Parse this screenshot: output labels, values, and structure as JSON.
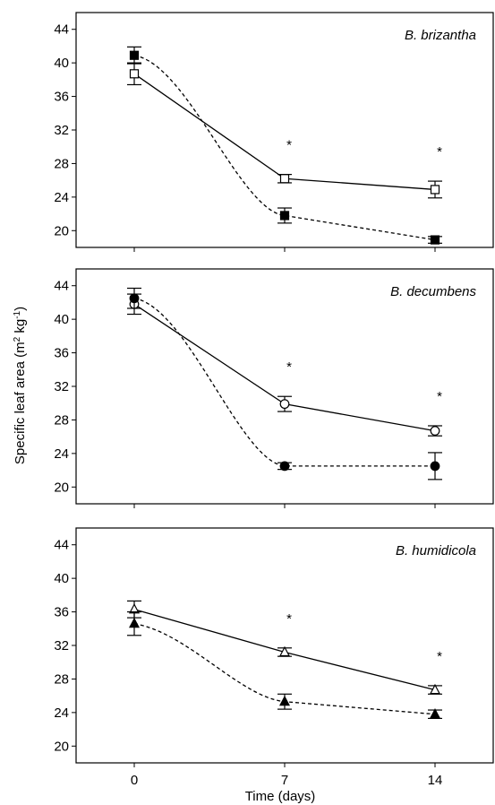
{
  "chart_data": [
    {
      "type": "line",
      "title": "B. brizantha",
      "x": [
        0,
        7,
        14
      ],
      "x_ticks": [
        "0",
        "7",
        "14"
      ],
      "y_ticks": [
        "20",
        "24",
        "28",
        "32",
        "36",
        "40",
        "44"
      ],
      "ylim": [
        18,
        46
      ],
      "series": [
        {
          "marker": "square-open",
          "line": "solid",
          "values": [
            38.7,
            26.2,
            24.9
          ],
          "errors": [
            1.3,
            0.5,
            1.0
          ]
        },
        {
          "marker": "square-filled",
          "line": "dashed",
          "values": [
            40.9,
            21.8,
            18.9
          ],
          "errors": [
            1.0,
            0.9,
            0.4
          ]
        }
      ],
      "significance": [
        "",
        "*",
        "*"
      ]
    },
    {
      "type": "line",
      "title": "B. decumbens",
      "x": [
        0,
        7,
        14
      ],
      "x_ticks": [
        "0",
        "7",
        "14"
      ],
      "y_ticks": [
        "20",
        "24",
        "28",
        "32",
        "36",
        "40",
        "44"
      ],
      "ylim": [
        18,
        46
      ],
      "series": [
        {
          "marker": "circle-open",
          "line": "solid",
          "values": [
            41.8,
            29.9,
            26.7
          ],
          "errors": [
            1.2,
            0.9,
            0.6
          ]
        },
        {
          "marker": "circle-filled",
          "line": "dashed",
          "values": [
            42.5,
            22.5,
            22.5
          ],
          "errors": [
            1.2,
            0.4,
            1.6
          ]
        }
      ],
      "significance": [
        "",
        "*",
        "*"
      ]
    },
    {
      "type": "line",
      "title": "B. humidicola",
      "x": [
        0,
        7,
        14
      ],
      "x_ticks": [
        "0",
        "7",
        "14"
      ],
      "y_ticks": [
        "20",
        "24",
        "28",
        "32",
        "36",
        "40",
        "44"
      ],
      "ylim": [
        18,
        46
      ],
      "series": [
        {
          "marker": "triangle-open",
          "line": "solid",
          "values": [
            36.3,
            31.2,
            26.7
          ],
          "errors": [
            1.0,
            0.5,
            0.5
          ]
        },
        {
          "marker": "triangle-filled",
          "line": "dashed",
          "values": [
            34.6,
            25.3,
            23.8
          ],
          "errors": [
            1.4,
            0.9,
            0.5
          ]
        }
      ],
      "significance": [
        "",
        "*",
        "*"
      ]
    }
  ],
  "xlabel": "Time (days)",
  "ylabel": {
    "main": "Specific leaf area (m",
    "sup1": "2",
    "mid": " kg",
    "sup2": "-1",
    "end": ")"
  }
}
